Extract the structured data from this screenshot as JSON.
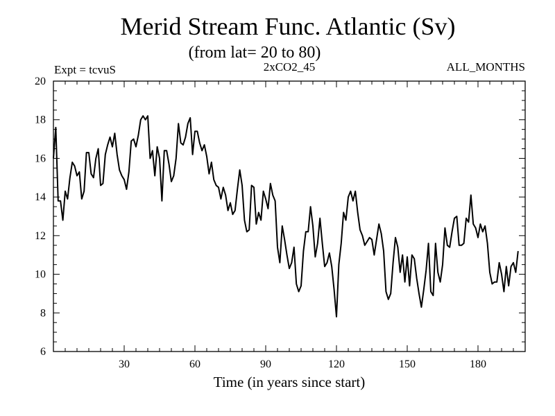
{
  "chart_data": {
    "type": "line",
    "title": "Merid Stream Func. Atlantic (Sv)",
    "subtitle": "(from lat= 20 to 80)",
    "annotations": {
      "left": "Expt = tcvuS",
      "center": "2xCO2_45",
      "right": "ALL_MONTHS"
    },
    "xlabel": "Time (in years since start)",
    "ylabel": "",
    "xlim": [
      0,
      200
    ],
    "ylim": [
      6,
      20
    ],
    "xticks": [
      30,
      60,
      90,
      120,
      150,
      180
    ],
    "yticks": [
      6,
      8,
      10,
      12,
      14,
      16,
      18,
      20
    ],
    "grid": false,
    "series": [
      {
        "values": [
          [
            0,
            16.0
          ],
          [
            1,
            17.6
          ],
          [
            2,
            13.8
          ],
          [
            3,
            13.8
          ],
          [
            4,
            12.8
          ],
          [
            5,
            14.3
          ],
          [
            6,
            13.9
          ],
          [
            7,
            15.0
          ],
          [
            8,
            15.8
          ],
          [
            9,
            15.6
          ],
          [
            10,
            15.1
          ],
          [
            11,
            15.3
          ],
          [
            12,
            13.9
          ],
          [
            13,
            14.3
          ],
          [
            14,
            16.3
          ],
          [
            15,
            16.3
          ],
          [
            16,
            15.2
          ],
          [
            17,
            15.0
          ],
          [
            18,
            16.0
          ],
          [
            19,
            16.5
          ],
          [
            20,
            14.6
          ],
          [
            21,
            14.7
          ],
          [
            22,
            16.2
          ],
          [
            23,
            16.7
          ],
          [
            24,
            17.1
          ],
          [
            25,
            16.6
          ],
          [
            26,
            17.3
          ],
          [
            27,
            16.2
          ],
          [
            28,
            15.4
          ],
          [
            29,
            15.1
          ],
          [
            30,
            14.9
          ],
          [
            31,
            14.4
          ],
          [
            32,
            15.3
          ],
          [
            33,
            16.9
          ],
          [
            34,
            17.0
          ],
          [
            35,
            16.6
          ],
          [
            36,
            17.2
          ],
          [
            37,
            18.0
          ],
          [
            38,
            18.2
          ],
          [
            39,
            18.0
          ],
          [
            40,
            18.2
          ],
          [
            41,
            16.0
          ],
          [
            42,
            16.4
          ],
          [
            43,
            15.1
          ],
          [
            44,
            16.6
          ],
          [
            45,
            16.0
          ],
          [
            46,
            13.8
          ],
          [
            47,
            16.4
          ],
          [
            48,
            16.4
          ],
          [
            49,
            15.7
          ],
          [
            50,
            14.8
          ],
          [
            51,
            15.1
          ],
          [
            52,
            16.0
          ],
          [
            53,
            17.8
          ],
          [
            54,
            16.8
          ],
          [
            55,
            16.7
          ],
          [
            56,
            17.1
          ],
          [
            57,
            17.8
          ],
          [
            58,
            18.1
          ],
          [
            59,
            16.2
          ],
          [
            60,
            17.4
          ],
          [
            61,
            17.4
          ],
          [
            62,
            16.8
          ],
          [
            63,
            16.4
          ],
          [
            64,
            16.7
          ],
          [
            65,
            16.1
          ],
          [
            66,
            15.2
          ],
          [
            67,
            15.8
          ],
          [
            68,
            14.9
          ],
          [
            69,
            14.6
          ],
          [
            70,
            14.5
          ],
          [
            71,
            13.9
          ],
          [
            72,
            14.5
          ],
          [
            73,
            14.1
          ],
          [
            74,
            13.3
          ],
          [
            75,
            13.7
          ],
          [
            76,
            13.1
          ],
          [
            77,
            13.3
          ],
          [
            78,
            14.4
          ],
          [
            79,
            15.4
          ],
          [
            80,
            14.6
          ],
          [
            81,
            12.8
          ],
          [
            82,
            12.2
          ],
          [
            83,
            12.3
          ],
          [
            84,
            14.6
          ],
          [
            85,
            14.5
          ],
          [
            86,
            12.6
          ],
          [
            87,
            13.2
          ],
          [
            88,
            12.8
          ],
          [
            89,
            14.3
          ],
          [
            90,
            13.9
          ],
          [
            91,
            13.4
          ],
          [
            92,
            14.7
          ],
          [
            93,
            14.1
          ],
          [
            94,
            13.8
          ],
          [
            95,
            11.4
          ],
          [
            96,
            10.6
          ],
          [
            97,
            12.5
          ],
          [
            98,
            11.8
          ],
          [
            99,
            11.0
          ],
          [
            100,
            10.3
          ],
          [
            101,
            10.6
          ],
          [
            102,
            11.4
          ],
          [
            103,
            9.5
          ],
          [
            104,
            9.1
          ],
          [
            105,
            9.4
          ],
          [
            106,
            11.2
          ],
          [
            107,
            12.2
          ],
          [
            108,
            12.2
          ],
          [
            109,
            13.5
          ],
          [
            110,
            12.5
          ],
          [
            111,
            10.9
          ],
          [
            112,
            11.6
          ],
          [
            113,
            12.9
          ],
          [
            114,
            11.6
          ],
          [
            115,
            10.4
          ],
          [
            116,
            10.6
          ],
          [
            117,
            11.1
          ],
          [
            118,
            10.4
          ],
          [
            119,
            9.2
          ],
          [
            120,
            7.8
          ],
          [
            121,
            10.5
          ],
          [
            122,
            11.6
          ],
          [
            123,
            13.2
          ],
          [
            124,
            12.8
          ],
          [
            125,
            14.0
          ],
          [
            126,
            14.3
          ],
          [
            127,
            13.8
          ],
          [
            128,
            14.3
          ],
          [
            129,
            13.2
          ],
          [
            130,
            12.3
          ],
          [
            131,
            12.0
          ],
          [
            132,
            11.5
          ],
          [
            133,
            11.7
          ],
          [
            134,
            11.9
          ],
          [
            135,
            11.8
          ],
          [
            136,
            11.0
          ],
          [
            137,
            11.8
          ],
          [
            138,
            12.6
          ],
          [
            139,
            12.1
          ],
          [
            140,
            11.2
          ],
          [
            141,
            9.1
          ],
          [
            142,
            8.7
          ],
          [
            143,
            9.0
          ],
          [
            144,
            10.6
          ],
          [
            145,
            11.9
          ],
          [
            146,
            11.4
          ],
          [
            147,
            10.1
          ],
          [
            148,
            11.0
          ],
          [
            149,
            9.6
          ],
          [
            150,
            10.9
          ],
          [
            151,
            9.4
          ],
          [
            152,
            11.0
          ],
          [
            153,
            10.8
          ],
          [
            154,
            9.8
          ],
          [
            155,
            9.0
          ],
          [
            156,
            8.3
          ],
          [
            157,
            9.2
          ],
          [
            158,
            10.2
          ],
          [
            159,
            11.6
          ],
          [
            160,
            9.1
          ],
          [
            161,
            8.9
          ],
          [
            162,
            11.6
          ],
          [
            163,
            10.1
          ],
          [
            164,
            9.6
          ],
          [
            165,
            10.5
          ],
          [
            166,
            12.4
          ],
          [
            167,
            11.5
          ],
          [
            168,
            11.4
          ],
          [
            169,
            12.2
          ],
          [
            170,
            12.9
          ],
          [
            171,
            13.0
          ],
          [
            172,
            11.5
          ],
          [
            173,
            11.5
          ],
          [
            174,
            11.6
          ],
          [
            175,
            12.9
          ],
          [
            176,
            12.7
          ],
          [
            177,
            14.1
          ],
          [
            178,
            12.6
          ],
          [
            179,
            12.4
          ],
          [
            180,
            11.9
          ],
          [
            181,
            12.6
          ],
          [
            182,
            12.2
          ],
          [
            183,
            12.5
          ],
          [
            184,
            11.6
          ],
          [
            185,
            10.1
          ],
          [
            186,
            9.5
          ],
          [
            187,
            9.6
          ],
          [
            188,
            9.6
          ],
          [
            189,
            10.6
          ],
          [
            190,
            10.0
          ],
          [
            191,
            9.1
          ],
          [
            192,
            10.4
          ],
          [
            193,
            9.4
          ],
          [
            194,
            10.4
          ],
          [
            195,
            10.6
          ],
          [
            196,
            10.1
          ],
          [
            197,
            11.2
          ]
        ]
      }
    ]
  }
}
